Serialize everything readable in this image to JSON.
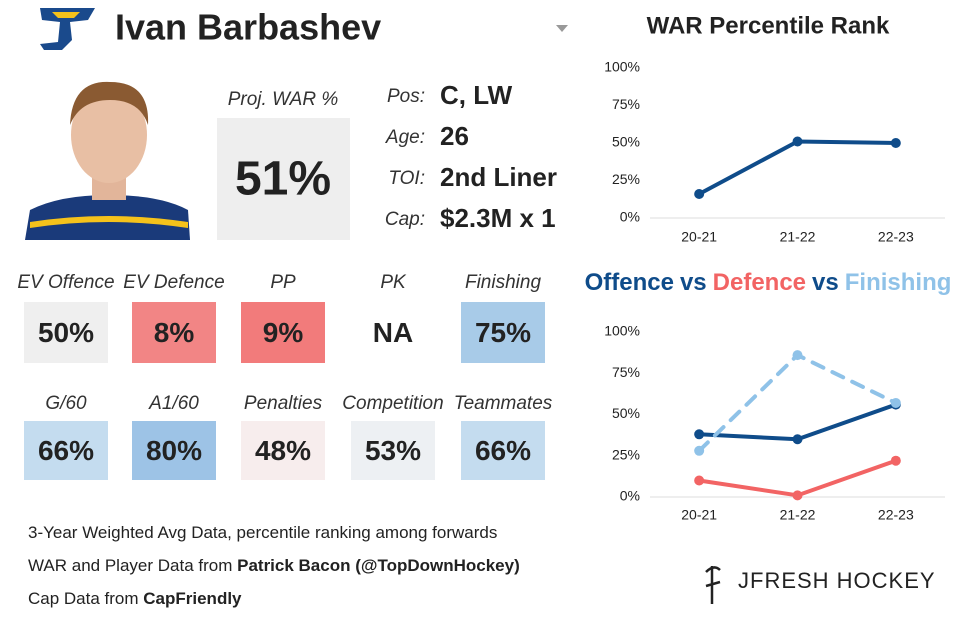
{
  "header": {
    "name": "Ivan Barbashev"
  },
  "proj_war": {
    "label": "Proj. WAR %",
    "value": "51%"
  },
  "info": [
    {
      "label": "Pos:",
      "value": "C, LW"
    },
    {
      "label": "Age:",
      "value": "26"
    },
    {
      "label": "TOI:",
      "value": "2nd Liner"
    },
    {
      "label": "Cap:",
      "value": "$2.3M x 1"
    }
  ],
  "tiles": [
    {
      "label": "EV Offence",
      "value": "50%",
      "color": "#efefef"
    },
    {
      "label": "EV Defence",
      "value": "8%",
      "color": "#f28585"
    },
    {
      "label": "PP",
      "value": "9%",
      "color": "#f27b7b"
    },
    {
      "label": "PK",
      "value": "NA",
      "color": "#ffffff"
    },
    {
      "label": "Finishing",
      "value": "75%",
      "color": "#a8cbe8"
    },
    {
      "label": "G/60",
      "value": "66%",
      "color": "#c4dcef"
    },
    {
      "label": "A1/60",
      "value": "80%",
      "color": "#9dc3e6"
    },
    {
      "label": "Penalties",
      "value": "48%",
      "color": "#f7eded"
    },
    {
      "label": "Competition",
      "value": "53%",
      "color": "#edf0f3"
    },
    {
      "label": "Teammates",
      "value": "66%",
      "color": "#c4dcef"
    }
  ],
  "notes": [
    [
      "3-Year Weighted Avg Data, percentile ranking among forwards"
    ],
    [
      "WAR and Player Data from ",
      "Patrick Bacon (@TopDownHockey)"
    ],
    [
      "Cap Data from ",
      "CapFriendly"
    ]
  ],
  "brand": "JFRESH HOCKEY",
  "chart_data": [
    {
      "type": "line",
      "title": "WAR Percentile Rank",
      "categories": [
        "20-21",
        "21-22",
        "22-23"
      ],
      "series": [
        {
          "color": "#0f4c8a",
          "values": [
            16,
            51,
            50
          ]
        }
      ],
      "ylim": [
        0,
        100
      ],
      "yticks": [
        {
          "value": 0,
          "label": "0%"
        },
        {
          "value": 25,
          "label": "25%"
        },
        {
          "value": 50,
          "label": "50%"
        },
        {
          "value": 75,
          "label": "75%"
        },
        {
          "value": 100,
          "label": "100%"
        }
      ]
    },
    {
      "type": "line",
      "title_separator": "vs",
      "categories": [
        "20-21",
        "21-22",
        "22-23"
      ],
      "series": [
        {
          "name": "Offence",
          "color": "#0f4c8a",
          "values": [
            38,
            35,
            56
          ]
        },
        {
          "name": "Defence",
          "color": "#f26464",
          "values": [
            10,
            1,
            22
          ]
        },
        {
          "name": "Finishing",
          "color": "#8fc2e8",
          "dashed": true,
          "values": [
            28,
            86,
            57
          ]
        }
      ],
      "ylim": [
        0,
        100
      ],
      "yticks": [
        {
          "value": 0,
          "label": "0%"
        },
        {
          "value": 25,
          "label": "25%"
        },
        {
          "value": 50,
          "label": "50%"
        },
        {
          "value": 75,
          "label": "75%"
        },
        {
          "value": 100,
          "label": "100%"
        }
      ]
    }
  ]
}
